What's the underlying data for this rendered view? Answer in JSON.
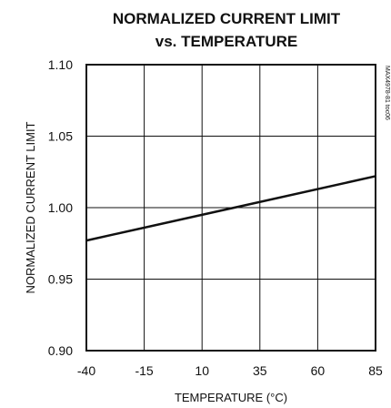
{
  "chart_data": {
    "type": "line",
    "title_line1": "NORMALIZED CURRENT LIMIT",
    "title_line2": "vs. TEMPERATURE",
    "xlabel": "TEMPERATURE (°C)",
    "ylabel": "NORMALIZED CURRENT LIMIT",
    "xlim": [
      -40,
      85
    ],
    "ylim": [
      0.9,
      1.1
    ],
    "x_ticks": [
      -40,
      -15,
      10,
      35,
      60,
      85
    ],
    "y_ticks": [
      0.9,
      0.95,
      1.0,
      1.05,
      1.1
    ],
    "x_tick_labels": [
      "-40",
      "-15",
      "10",
      "35",
      "60",
      "85"
    ],
    "y_tick_labels": [
      "0.90",
      "0.95",
      "1.00",
      "1.05",
      "1.10"
    ],
    "grid": true,
    "series": [
      {
        "x": [
          -40,
          85
        ],
        "y": [
          0.977,
          1.022
        ]
      }
    ],
    "side_code": "MAX4978-81 toc06"
  }
}
